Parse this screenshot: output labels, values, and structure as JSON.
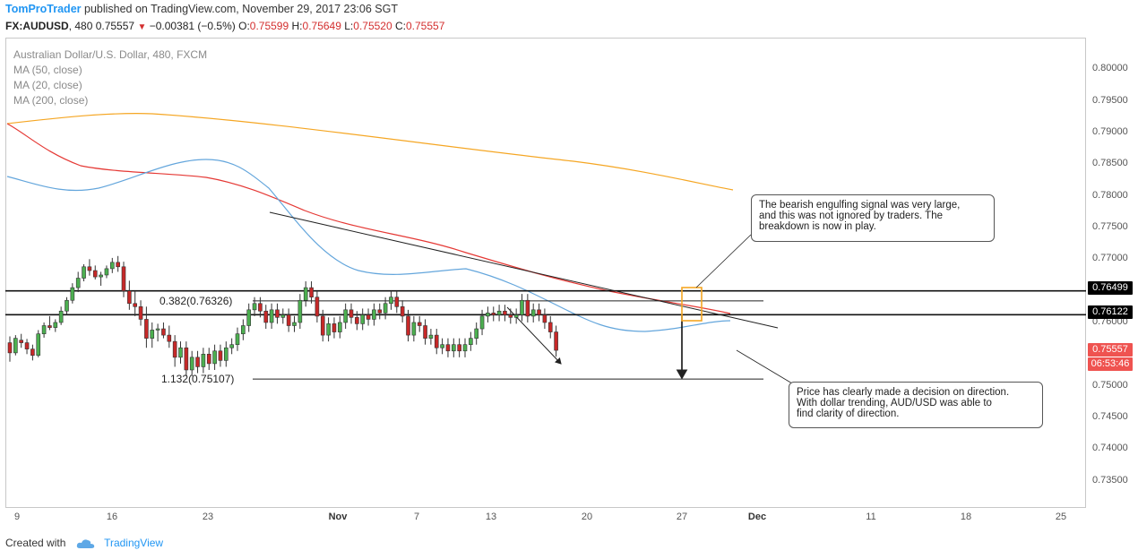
{
  "header": {
    "author": "TomProTrader",
    "published": " published on TradingView.com, November 29, 2017 23:06 SGT",
    "symbol": "FX:AUDUSD",
    "interval": ", 480 ",
    "last": "0.75557",
    "change": "−0.00381 (−0.5%)",
    "open_label": "O:",
    "open": "0.75599",
    "high_label": "H:",
    "high": "0.75649",
    "low_label": "L:",
    "low": "0.75520",
    "close_label": "C:",
    "close": "0.75557"
  },
  "legend": {
    "title": "Australian Dollar/U.S. Dollar, 480, FXCM",
    "ma50": "MA (50, close)",
    "ma20": "MA (20, close)",
    "ma200": "MA (200, close)"
  },
  "annotations": {
    "note1": [
      "The bearish engulfing signal was very large,",
      "and this was not ignored by traders. The",
      "breakdown is now in play."
    ],
    "note2": [
      "Price has clearly made a decision on direction.",
      "With dollar trending, AUD/USD was able to",
      "find clarity of direction."
    ],
    "fib1": "0.382(0.76326)",
    "fib2": "1.132(0.75107)"
  },
  "price_labels": {
    "resistance": "0.76499",
    "support": "0.76122",
    "last": "0.75557",
    "countdown": "06:53:46"
  },
  "footer": {
    "created_with": "Created with",
    "brand": "TradingView"
  },
  "colors": {
    "bull": "#4caf50",
    "bear": "#c62828",
    "ma50": "#e53935",
    "ma20": "#64a6dc",
    "ma200": "#f5a623",
    "box": "#f5a623"
  },
  "chart_data": {
    "type": "candlestick",
    "title": "Australian Dollar/U.S. Dollar, 480, FXCM",
    "ylim": [
      0.7307,
      0.805
    ],
    "y_ticks": [
      "0.80000",
      "0.79500",
      "0.79000",
      "0.78500",
      "0.78000",
      "0.77500",
      "0.77000",
      "0.76500",
      "0.76000",
      "0.75500",
      "0.75000",
      "0.74500",
      "0.74000",
      "0.73500"
    ],
    "x_ticks": [
      "9",
      "16",
      "23",
      "Nov",
      "7",
      "13",
      "20",
      "27",
      "Dec",
      "11",
      "18",
      "25"
    ],
    "levels": {
      "resistance": 0.76499,
      "support": 0.76122,
      "fib_0382": 0.76326,
      "fib_1132": 0.75107
    },
    "candles": [
      [
        0.7568,
        0.7578,
        0.7538,
        0.7552
      ],
      [
        0.7552,
        0.758,
        0.7548,
        0.7575
      ],
      [
        0.7572,
        0.7582,
        0.756,
        0.7568
      ],
      [
        0.7568,
        0.7574,
        0.755,
        0.7558
      ],
      [
        0.7558,
        0.7565,
        0.754,
        0.7548
      ],
      [
        0.7548,
        0.7588,
        0.7545,
        0.7582
      ],
      [
        0.7582,
        0.76,
        0.7576,
        0.7595
      ],
      [
        0.7595,
        0.761,
        0.7588,
        0.7592
      ],
      [
        0.7592,
        0.7605,
        0.7585,
        0.76
      ],
      [
        0.76,
        0.7625,
        0.7596,
        0.7618
      ],
      [
        0.7618,
        0.764,
        0.7612,
        0.7635
      ],
      [
        0.7635,
        0.7662,
        0.763,
        0.7655
      ],
      [
        0.7655,
        0.768,
        0.7648,
        0.767
      ],
      [
        0.767,
        0.7692,
        0.7665,
        0.7688
      ],
      [
        0.7688,
        0.77,
        0.7674,
        0.7682
      ],
      [
        0.7682,
        0.769,
        0.7668,
        0.7672
      ],
      [
        0.7672,
        0.768,
        0.7658,
        0.7675
      ],
      [
        0.7675,
        0.769,
        0.767,
        0.7685
      ],
      [
        0.7685,
        0.7702,
        0.7678,
        0.7695
      ],
      [
        0.7695,
        0.7705,
        0.768,
        0.7688
      ],
      [
        0.7688,
        0.7696,
        0.764,
        0.765
      ],
      [
        0.765,
        0.7666,
        0.762,
        0.763
      ],
      [
        0.763,
        0.765,
        0.761,
        0.7625
      ],
      [
        0.7625,
        0.7635,
        0.7595,
        0.7605
      ],
      [
        0.7605,
        0.7625,
        0.756,
        0.7575
      ],
      [
        0.7575,
        0.76,
        0.756,
        0.7588
      ],
      [
        0.7588,
        0.7598,
        0.757,
        0.759
      ],
      [
        0.759,
        0.76,
        0.7575,
        0.758
      ],
      [
        0.758,
        0.7595,
        0.756,
        0.757
      ],
      [
        0.757,
        0.758,
        0.753,
        0.7545
      ]
    ]
  }
}
